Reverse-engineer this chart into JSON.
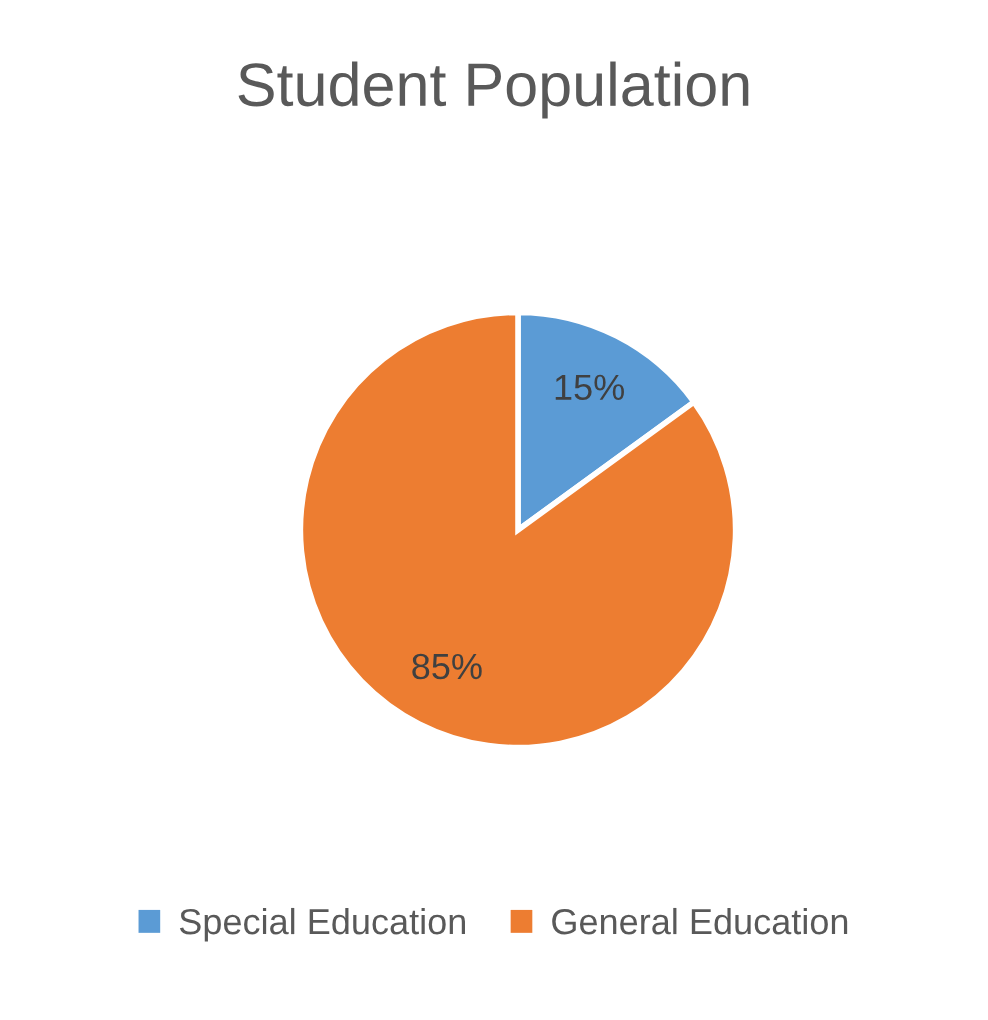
{
  "chart_data": {
    "type": "pie",
    "title": "Student Population",
    "categories": [
      "Special Education",
      "General Education"
    ],
    "values": [
      15,
      85
    ],
    "value_labels": [
      "15%",
      "85%"
    ],
    "colors": [
      "#5b9bd5",
      "#ed7d31"
    ],
    "legend": "bottom"
  }
}
